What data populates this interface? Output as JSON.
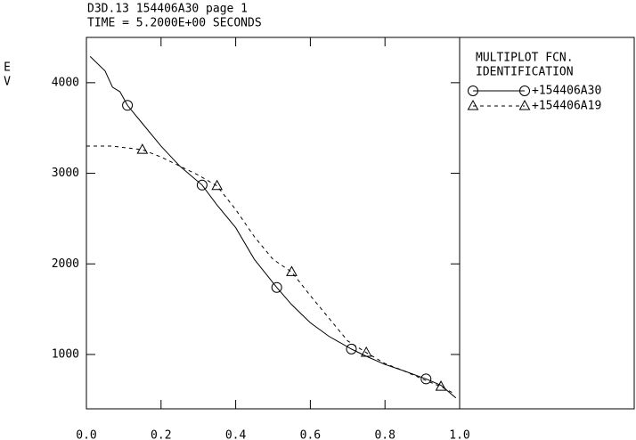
{
  "chart_data": {
    "type": "line",
    "title": "D3D.13 154406A30 page 1",
    "subtitle": "TIME = 5.2000E+00 SECONDS",
    "y_label_top": "E",
    "y_label_bottom": "V",
    "legend_title": "MULTIPLOT FCN.",
    "legend_subtitle": "IDENTIFICATION",
    "xlim": [
      0,
      1
    ],
    "xticks": [
      {
        "value": 0,
        "label": "0.0"
      },
      0.2,
      0.4,
      0.6,
      0.8,
      {
        "value": 1,
        "label": "1.0"
      }
    ],
    "ylim": [
      400,
      4500
    ],
    "yticks": [
      1000,
      2000,
      3000,
      4000
    ],
    "series": [
      {
        "name": "+154406A30",
        "color": "#000000",
        "dash": "none",
        "marker": "circle",
        "x": [
          0.01,
          0.05,
          0.07,
          0.09,
          0.11,
          0.15,
          0.2,
          0.25,
          0.31,
          0.35,
          0.4,
          0.45,
          0.51,
          0.55,
          0.6,
          0.65,
          0.71,
          0.75,
          0.8,
          0.85,
          0.91,
          0.95,
          0.99
        ],
        "values": [
          4290,
          4130,
          3950,
          3900,
          3750,
          3550,
          3300,
          3080,
          2870,
          2650,
          2400,
          2050,
          1740,
          1550,
          1350,
          1200,
          1060,
          980,
          890,
          820,
          730,
          660,
          520
        ],
        "marker_indices": [
          4,
          8,
          12,
          16,
          20
        ]
      },
      {
        "name": "+154406A19",
        "color": "#000000",
        "dash": "4 4",
        "marker": "triangle",
        "x": [
          0.0,
          0.07,
          0.15,
          0.2,
          0.25,
          0.3,
          0.35,
          0.4,
          0.45,
          0.5,
          0.55,
          0.6,
          0.65,
          0.7,
          0.75,
          0.8,
          0.85,
          0.9,
          0.95,
          0.98
        ],
        "values": [
          3300,
          3300,
          3260,
          3180,
          3080,
          2980,
          2860,
          2600,
          2300,
          2050,
          1910,
          1650,
          1400,
          1150,
          1020,
          900,
          820,
          730,
          645,
          580
        ],
        "marker_indices": [
          2,
          6,
          10,
          14,
          18
        ]
      }
    ]
  }
}
